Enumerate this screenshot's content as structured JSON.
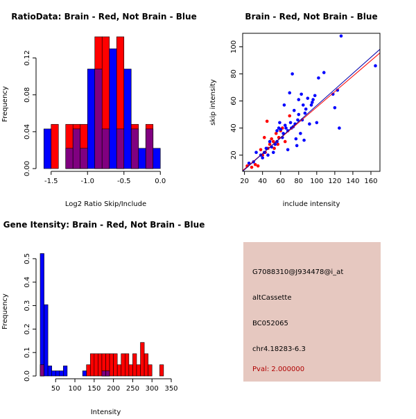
{
  "colors": {
    "red": "#ff0000",
    "blue": "#0000ff",
    "overlap": "#800080",
    "panel": "#e6c8c0",
    "pval_text": "#b00000",
    "line_red": "#ff0000",
    "line_blue": "#0000aa"
  },
  "chart_data": [
    {
      "type": "bar",
      "title": "RatioData: Brain - Red, Not Brain - Blue",
      "xlabel": "Log2 Ratio Skip/Include",
      "ylabel": "Frequency",
      "xlim": [
        -1.65,
        0.15
      ],
      "ylim": [
        0,
        0.14
      ],
      "xticks": [
        -1.5,
        -1.0,
        -0.5,
        0.0
      ],
      "xtick_labels": [
        "-1.5",
        "-1.0",
        "-0.5",
        "0.0"
      ],
      "yticks": [
        0.0,
        0.04,
        0.08,
        0.12
      ],
      "ytick_labels": [
        "0.00",
        "0.04",
        "0.08",
        "0.12"
      ],
      "bin_edges": [
        -1.6,
        -1.5,
        -1.4,
        -1.3,
        -1.2,
        -1.1,
        -1.0,
        -0.9,
        -0.8,
        -0.7,
        -0.6,
        -0.5,
        -0.4,
        -0.3,
        -0.2,
        -0.1,
        0.0,
        0.1
      ],
      "series": [
        {
          "name": "Brain",
          "color": "red",
          "values": [
            0,
            0.048,
            0,
            0.048,
            0.048,
            0.048,
            0,
            0.143,
            0.143,
            0,
            0.143,
            0,
            0.048,
            0,
            0.048,
            0,
            0
          ]
        },
        {
          "name": "Not Brain",
          "color": "blue",
          "values": [
            0.043,
            0,
            0,
            0.022,
            0.043,
            0.022,
            0.108,
            0.108,
            0.043,
            0.13,
            0.043,
            0.108,
            0.043,
            0.022,
            0.043,
            0.022,
            0
          ]
        }
      ]
    },
    {
      "type": "scatter",
      "title": "Brain - Red, Not Brain - Blue",
      "xlabel": "include intensity",
      "ylabel": "skip intensity",
      "xlim": [
        18,
        170
      ],
      "ylim": [
        8,
        110
      ],
      "xticks": [
        20,
        40,
        60,
        80,
        100,
        120,
        140,
        160
      ],
      "yticks": [
        20,
        40,
        60,
        80,
        100
      ],
      "series": [
        {
          "name": "Brain",
          "color": "red",
          "points": [
            [
              23,
              12
            ],
            [
              28,
              11
            ],
            [
              32,
              13
            ],
            [
              35,
              12
            ],
            [
              38,
              24
            ],
            [
              40,
              20
            ],
            [
              42,
              33
            ],
            [
              43,
              22
            ],
            [
              45,
              45
            ],
            [
              46,
              25
            ],
            [
              48,
              28
            ],
            [
              50,
              32
            ],
            [
              52,
              30
            ],
            [
              53,
              25
            ],
            [
              55,
              36
            ],
            [
              57,
              28
            ],
            [
              58,
              33
            ],
            [
              60,
              38
            ],
            [
              62,
              40
            ],
            [
              65,
              30
            ],
            [
              70,
              49
            ]
          ]
        },
        {
          "name": "Not Brain",
          "color": "blue",
          "points": [
            [
              25,
              14
            ],
            [
              30,
              15
            ],
            [
              33,
              22
            ],
            [
              38,
              20
            ],
            [
              40,
              18
            ],
            [
              42,
              22
            ],
            [
              44,
              25
            ],
            [
              46,
              20
            ],
            [
              48,
              30
            ],
            [
              50,
              26
            ],
            [
              52,
              22
            ],
            [
              54,
              28
            ],
            [
              56,
              30
            ],
            [
              56,
              38
            ],
            [
              58,
              40
            ],
            [
              59,
              44
            ],
            [
              60,
              39
            ],
            [
              62,
              33
            ],
            [
              63,
              36
            ],
            [
              64,
              57
            ],
            [
              65,
              42
            ],
            [
              66,
              40
            ],
            [
              68,
              38
            ],
            [
              68,
              24
            ],
            [
              70,
              66
            ],
            [
              71,
              44
            ],
            [
              72,
              40
            ],
            [
              73,
              80
            ],
            [
              74,
              41
            ],
            [
              75,
              53
            ],
            [
              76,
              43
            ],
            [
              77,
              32
            ],
            [
              78,
              27
            ],
            [
              79,
              46
            ],
            [
              80,
              50
            ],
            [
              80,
              61
            ],
            [
              82,
              36
            ],
            [
              83,
              65
            ],
            [
              84,
              46
            ],
            [
              85,
              57
            ],
            [
              86,
              31
            ],
            [
              87,
              51
            ],
            [
              88,
              54
            ],
            [
              90,
              62
            ],
            [
              92,
              43
            ],
            [
              94,
              57
            ],
            [
              95,
              59
            ],
            [
              96,
              61
            ],
            [
              98,
              64
            ],
            [
              100,
              44
            ],
            [
              102,
              77
            ],
            [
              108,
              81
            ],
            [
              118,
              65
            ],
            [
              120,
              55
            ],
            [
              123,
              68
            ],
            [
              125,
              40
            ],
            [
              127,
              108
            ],
            [
              165,
              86
            ]
          ]
        }
      ],
      "fit_lines": [
        {
          "name": "Brain",
          "color": "red",
          "from": [
            18,
            8.6
          ],
          "to": [
            170,
            95.5
          ]
        },
        {
          "name": "Not Brain",
          "color": "blue",
          "from": [
            18,
            8.0
          ],
          "to": [
            170,
            98.2
          ]
        }
      ]
    },
    {
      "type": "bar",
      "title": "Gene Itensity: Brain - Red, Not Brain - Blue",
      "xlabel": "Intensity",
      "ylabel": "Frequency",
      "xlim": [
        10,
        350
      ],
      "ylim": [
        0,
        0.55
      ],
      "xticks": [
        50,
        100,
        150,
        200,
        250,
        300,
        350
      ],
      "yticks": [
        0.0,
        0.1,
        0.2,
        0.3,
        0.4,
        0.5
      ],
      "ytick_labels": [
        "0.0",
        "0.1",
        "0.2",
        "0.3",
        "0.4",
        "0.5"
      ],
      "bin_edges": [
        10,
        20,
        30,
        40,
        50,
        60,
        70,
        80,
        90,
        100,
        110,
        120,
        130,
        140,
        150,
        160,
        170,
        180,
        190,
        200,
        210,
        220,
        230,
        240,
        250,
        260,
        270,
        280,
        290,
        300,
        310,
        320,
        330,
        340
      ],
      "series": [
        {
          "name": "Brain",
          "color": "red",
          "values": [
            0.048,
            0,
            0,
            0,
            0,
            0,
            0,
            0,
            0,
            0,
            0,
            0,
            0.048,
            0.095,
            0.095,
            0.095,
            0.095,
            0.095,
            0.095,
            0.095,
            0.048,
            0.095,
            0.095,
            0.048,
            0.095,
            0.048,
            0.143,
            0.095,
            0.048,
            0,
            0,
            0.048,
            0
          ]
        },
        {
          "name": "Not Brain",
          "color": "blue",
          "values": [
            0.522,
            0.304,
            0.043,
            0.022,
            0.022,
            0.022,
            0.043,
            0,
            0,
            0,
            0,
            0.022,
            0,
            0,
            0,
            0,
            0.022,
            0.022,
            0,
            0,
            0,
            0,
            0,
            0,
            0,
            0,
            0,
            0,
            0,
            0,
            0,
            0,
            0
          ]
        }
      ]
    }
  ],
  "info": {
    "probe": "G7088310@J934478@i_at",
    "event_type": "altCassette",
    "accession": "BC052065",
    "location": "chr4.18283-6.3",
    "pval": "Pval: 2.000000"
  }
}
